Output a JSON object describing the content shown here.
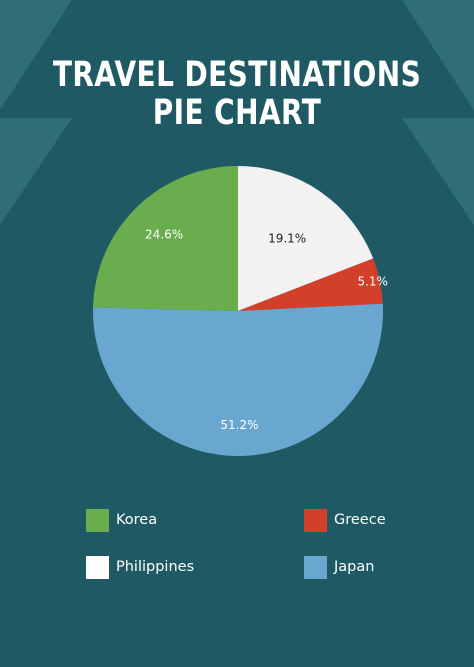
{
  "chart_data": {
    "type": "pie",
    "title_lines": [
      "TRAVEL DESTINATIONS",
      "PIE CHART"
    ],
    "slices": [
      {
        "name": "Philippines",
        "value": 19.1,
        "label": "19.1%",
        "color": "#f3f1f2",
        "label_color": "#222222"
      },
      {
        "name": "Greece",
        "value": 5.1,
        "label": "5.1%",
        "color": "#d2402a",
        "label_color": "#ffffff"
      },
      {
        "name": "Japan",
        "value": 51.2,
        "label": "51.2%",
        "color": "#6aa7d0",
        "label_color": "#ffffff"
      },
      {
        "name": "Korea",
        "value": 24.6,
        "label": "24.6%",
        "color": "#69ad4e",
        "label_color": "#ffffff"
      }
    ],
    "legend": [
      {
        "name": "Korea",
        "color": "#69ad4e"
      },
      {
        "name": "Greece",
        "color": "#d2402a"
      },
      {
        "name": "Philippines",
        "color": "#ffffff"
      },
      {
        "name": "Japan",
        "color": "#6aa7d0"
      }
    ],
    "legend_placement": "bottom"
  },
  "colors": {
    "background": "#1f5a64",
    "accent_shapes": "#2f6e78"
  }
}
